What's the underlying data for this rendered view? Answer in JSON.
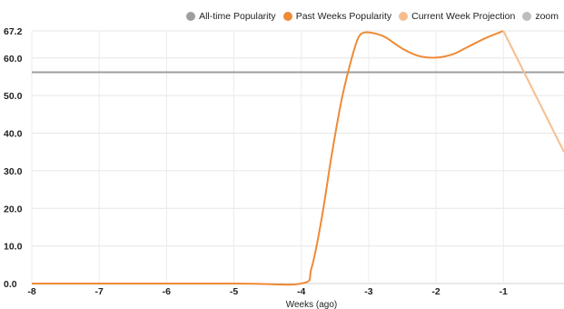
{
  "legend": {
    "items": [
      {
        "label": "All-time Popularity",
        "color": "#9e9e9e"
      },
      {
        "label": "Past Weeks Popularity",
        "color": "#ef8a36"
      },
      {
        "label": "Current Week Projection",
        "color": "#f6be8f"
      },
      {
        "label": "zoom",
        "color": "#bdbdbd"
      }
    ]
  },
  "chart_data": {
    "type": "line",
    "xlabel": "Weeks (ago)",
    "ylabel": "",
    "xlim": [
      -8,
      -0.1
    ],
    "ylim": [
      0,
      67.2
    ],
    "x_ticks": [
      "-8",
      "-7",
      "-6",
      "-5",
      "-4",
      "-3",
      "-2",
      "-1"
    ],
    "x_tick_values": [
      -8,
      -7,
      -6,
      -5,
      -4,
      -3,
      -2,
      -1
    ],
    "y_ticks": [
      "0.0",
      "10.0",
      "20.0",
      "30.0",
      "40.0",
      "50.0",
      "60.0",
      "67.2"
    ],
    "y_tick_values": [
      0,
      10,
      20,
      30,
      40,
      50,
      60,
      67.2
    ],
    "grid": true,
    "legend_position": "top-right",
    "series": [
      {
        "name": "All-time Popularity",
        "color": "#9e9e9e",
        "x": [
          -8,
          -0.1
        ],
        "y": [
          56.2,
          56.2
        ]
      },
      {
        "name": "Past Weeks Popularity",
        "color": "#ef8a36",
        "x": [
          -8,
          -5,
          -4,
          -3.85,
          -3.7,
          -3.55,
          -3.4,
          -3.25,
          -3.15,
          -3.05,
          -2.9,
          -2.75,
          -2.5,
          -2.25,
          -2.0,
          -1.75,
          -1.5,
          -1.25,
          -1.0
        ],
        "y": [
          0,
          0,
          0,
          4,
          17,
          34,
          49,
          60,
          65.5,
          66.8,
          66.5,
          65.5,
          62.5,
          60.5,
          60.1,
          61,
          63.2,
          65.4,
          67.2
        ]
      },
      {
        "name": "Current Week Projection",
        "color": "#f6be8f",
        "x": [
          -1.0,
          -0.1
        ],
        "y": [
          67.2,
          35
        ]
      }
    ]
  }
}
